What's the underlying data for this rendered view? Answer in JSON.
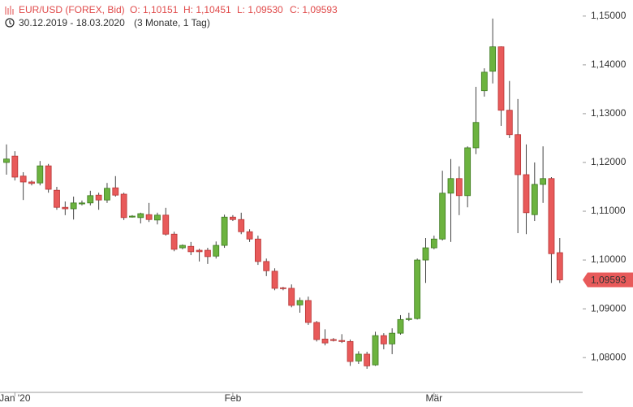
{
  "chart_data": {
    "type": "candlestick",
    "title": "EUR/USD (FOREX, Bid)",
    "ohlc_labels": [
      "O: 1,10151",
      "H: 1,10451",
      "L: 1,09530",
      "C: 1,09593"
    ],
    "date_range": "30.12.2019 - 18.03.2020",
    "period": "(3 Monate, 1 Tag)",
    "categories": [
      null,
      "Jan '20",
      null,
      null,
      null,
      null,
      null,
      null,
      null,
      null,
      null,
      null,
      null,
      null,
      null,
      null,
      null,
      null,
      null,
      null,
      null,
      null,
      null,
      null,
      null,
      null,
      null,
      "Feb",
      null,
      null,
      null,
      null,
      null,
      null,
      null,
      null,
      null,
      null,
      null,
      null,
      null,
      null,
      null,
      null,
      null,
      null,
      null,
      null,
      null,
      null,
      null,
      "Mär",
      null,
      null,
      null,
      null,
      null,
      null,
      null,
      null,
      null,
      null,
      null,
      null,
      null,
      null,
      null
    ],
    "open": [
      1.12,
      1.1213,
      1.1172,
      1.116,
      1.1158,
      1.1193,
      1.1143,
      1.1108,
      1.1105,
      1.1115,
      1.1117,
      1.1133,
      1.1123,
      1.1148,
      1.1135,
      1.1088,
      1.1087,
      1.1093,
      1.1082,
      1.1092,
      1.1053,
      1.1025,
      1.1028,
      1.102,
      1.102,
      1.1008,
      1.103,
      1.1088,
      1.1083,
      1.1058,
      1.1043,
      1.0997,
      1.0977,
      1.0943,
      1.0942,
      1.0908,
      1.0917,
      1.0872,
      1.0838,
      1.0837,
      1.0835,
      1.0833,
      1.0793,
      1.0807,
      1.0785,
      1.0845,
      1.0828,
      1.085,
      1.0878,
      1.088,
      1.1,
      1.1025,
      1.1043,
      1.1137,
      1.1167,
      1.1132,
      1.123,
      1.1347,
      1.1387,
      1.1437,
      1.1307,
      1.1257,
      1.1175,
      1.1093,
      1.1155,
      1.1167,
      1.10151
    ],
    "high": [
      1.1237,
      1.1223,
      1.118,
      1.1163,
      1.1203,
      1.1197,
      1.115,
      1.112,
      1.113,
      1.1122,
      1.1142,
      1.1138,
      1.1158,
      1.1172,
      1.1138,
      1.1092,
      1.1097,
      1.1117,
      1.1097,
      1.1107,
      1.1058,
      1.1032,
      1.1037,
      1.1023,
      1.1025,
      1.1038,
      1.1093,
      1.1092,
      1.1097,
      1.1063,
      1.105,
      1.1003,
      1.0983,
      1.0945,
      1.095,
      1.0923,
      1.0925,
      1.0875,
      1.0858,
      1.084,
      1.0848,
      1.0837,
      1.0813,
      1.0812,
      1.0853,
      1.085,
      1.086,
      1.0887,
      1.0892,
      1.1003,
      1.1045,
      1.105,
      1.1183,
      1.1207,
      1.1192,
      1.1233,
      1.1355,
      1.1393,
      1.1495,
      1.1438,
      1.1367,
      1.133,
      1.1237,
      1.12,
      1.1233,
      1.117,
      1.10451
    ],
    "low": [
      1.1175,
      1.1163,
      1.1123,
      1.1153,
      1.1153,
      1.1138,
      1.1103,
      1.1092,
      1.1083,
      1.1112,
      1.1112,
      1.1103,
      1.1117,
      1.113,
      1.1082,
      1.1087,
      1.1075,
      1.1078,
      1.1073,
      1.105,
      1.1018,
      1.1022,
      1.101,
      1.0997,
      1.0992,
      1.1003,
      1.1025,
      1.108,
      1.1053,
      1.1037,
      1.099,
      1.0967,
      1.0938,
      1.0938,
      1.0903,
      1.0892,
      1.0867,
      1.0833,
      1.0825,
      1.0833,
      1.083,
      1.0783,
      1.0787,
      1.0777,
      1.0783,
      1.0817,
      1.0807,
      1.0847,
      1.0875,
      1.0878,
      1.0953,
      1.1022,
      1.104,
      1.1037,
      1.1092,
      1.1108,
      1.1217,
      1.1335,
      1.1362,
      1.1275,
      1.125,
      1.1055,
      1.1053,
      1.108,
      1.1117,
      1.0953,
      1.0953
    ],
    "close": [
      1.1207,
      1.117,
      1.116,
      1.1157,
      1.1193,
      1.1145,
      1.1108,
      1.1105,
      1.1117,
      1.1117,
      1.1132,
      1.1123,
      1.1147,
      1.1133,
      1.1087,
      1.109,
      1.1095,
      1.1083,
      1.1092,
      1.1053,
      1.1022,
      1.103,
      1.1017,
      1.1017,
      1.1007,
      1.103,
      1.1088,
      1.1083,
      1.1058,
      1.1043,
      1.0997,
      1.0978,
      1.0942,
      1.0942,
      1.0907,
      1.0917,
      1.0872,
      1.0837,
      1.083,
      1.0835,
      1.0833,
      1.0792,
      1.0807,
      1.0783,
      1.0845,
      1.0828,
      1.085,
      1.0878,
      1.088,
      1.1,
      1.1025,
      1.1043,
      1.1137,
      1.1167,
      1.1132,
      1.123,
      1.1282,
      1.1385,
      1.1437,
      1.1307,
      1.1257,
      1.1175,
      1.1097,
      1.1155,
      1.1167,
      1.1013,
      1.09593
    ],
    "up_color": "#6cb33f",
    "down_color": "#e85a5a",
    "last_price": {
      "value": 1.09593,
      "label": "1,09593"
    },
    "ylim": [
      1.0742,
      1.1533
    ],
    "yticks": [
      {
        "value": 1.08,
        "label": "1,08000"
      },
      {
        "value": 1.09,
        "label": "1,09000"
      },
      {
        "value": 1.1,
        "label": "1,10000"
      },
      {
        "value": 1.11,
        "label": "1,11000"
      },
      {
        "value": 1.12,
        "label": "1,12000"
      },
      {
        "value": 1.13,
        "label": "1,13000"
      },
      {
        "value": 1.14,
        "label": "1,14000"
      },
      {
        "value": 1.15,
        "label": "1,15000"
      }
    ]
  }
}
